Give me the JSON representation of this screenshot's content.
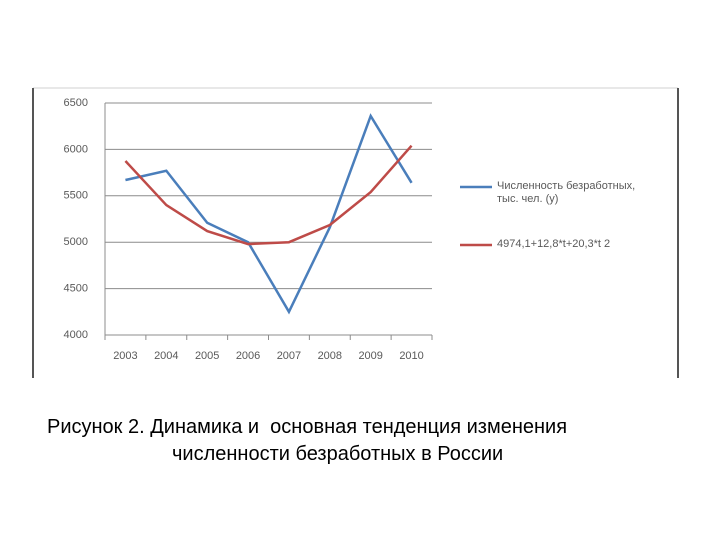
{
  "chart_data": {
    "type": "line",
    "categories": [
      "2003",
      "2004",
      "2005",
      "2006",
      "2007",
      "2008",
      "2009",
      "2010"
    ],
    "series": [
      {
        "name": "Численность безработных, тыс. чел. (y)",
        "color": "#4a7ebb",
        "values": [
          5670,
          5770,
          5210,
          5000,
          4250,
          5160,
          6360,
          5640
        ]
      },
      {
        "name": "4974,1+12,8*t+20,3*t 2",
        "color": "#be4b48",
        "values": [
          5875,
          5400,
          5120,
          4980,
          5000,
          5185,
          5540,
          6040
        ]
      }
    ],
    "ylim": [
      4000,
      6500
    ],
    "yticks": [
      4000,
      4500,
      5000,
      5500,
      6000,
      6500
    ],
    "grid": true,
    "legend": "right"
  },
  "caption": [
    "Рисунок 2. Динамика и  основная тенденция изменения",
    "численности безработных в России"
  ]
}
